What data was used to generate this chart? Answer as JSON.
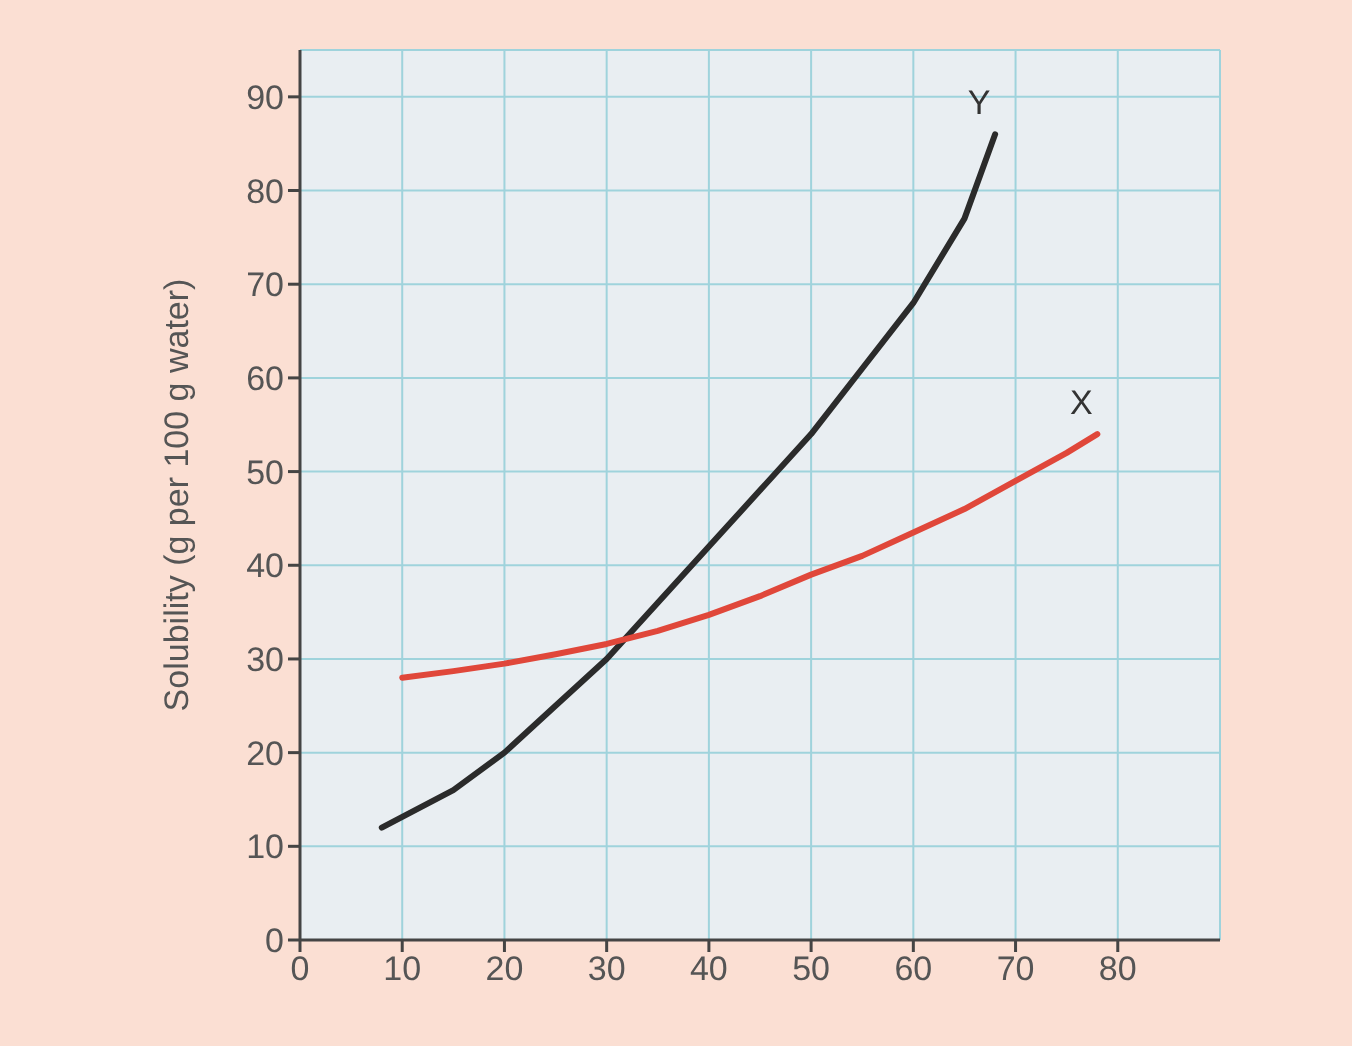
{
  "chart_data": {
    "type": "line",
    "ylabel": "Solubility (g per 100 g water)",
    "xlim": [
      0,
      90
    ],
    "ylim": [
      0,
      95
    ],
    "xticks": [
      0,
      10,
      20,
      30,
      40,
      50,
      60,
      70,
      80
    ],
    "yticks": [
      0,
      10,
      20,
      30,
      40,
      50,
      60,
      70,
      80,
      90
    ],
    "grid": true,
    "legend": false,
    "marker": "none",
    "line_style": "solid",
    "series": [
      {
        "name": "Y",
        "color": "#2b2b2b",
        "x": [
          8,
          15,
          20,
          25,
          30,
          35,
          40,
          45,
          50,
          55,
          60,
          65,
          68
        ],
        "values": [
          12,
          16,
          20,
          25,
          30,
          36,
          42,
          48,
          54,
          61,
          68,
          77,
          86
        ]
      },
      {
        "name": "X",
        "color": "#e0473a",
        "x": [
          10,
          15,
          20,
          25,
          30,
          35,
          40,
          45,
          50,
          55,
          60,
          65,
          70,
          75,
          78
        ],
        "values": [
          28,
          28.7,
          29.5,
          30.5,
          31.6,
          33,
          34.7,
          36.7,
          39,
          41,
          43.5,
          46,
          49,
          52,
          54
        ]
      }
    ]
  }
}
